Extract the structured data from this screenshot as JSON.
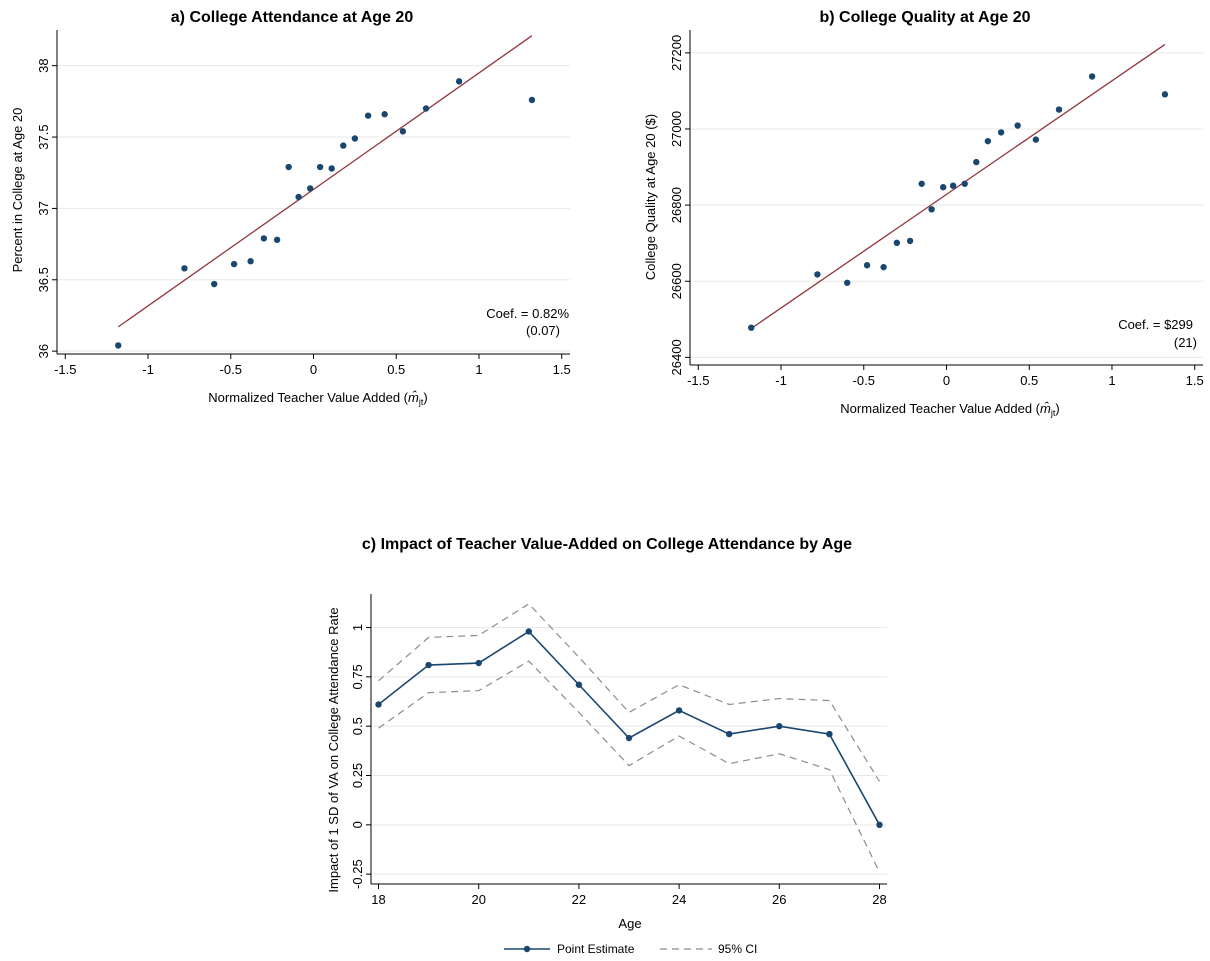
{
  "chart_data": [
    {
      "type": "scatter",
      "title": "a) College Attendance at Age 20",
      "xlabel": "Normalized Teacher Value Added (",
      "xlabel_symbol": "m̂",
      "xlabel_sub": "jt",
      "xlabel_end": ")",
      "ylabel": "Percent in College at Age 20",
      "xlim": [
        -1.55,
        1.55
      ],
      "ylim": [
        35.98,
        38.25
      ],
      "xticks": [
        -1.5,
        -1,
        -0.5,
        0,
        0.5,
        1,
        1.5
      ],
      "xtick_labels": [
        "-1.5",
        "-1",
        "-0.5",
        "0",
        "0.5",
        "1",
        "1.5"
      ],
      "yticks": [
        36,
        36.5,
        37,
        37.5,
        38
      ],
      "ytick_labels": [
        "36",
        "36.5",
        "37",
        "37.5",
        "38"
      ],
      "points": [
        {
          "x": -1.18,
          "y": 36.04
        },
        {
          "x": -0.78,
          "y": 36.58
        },
        {
          "x": -0.6,
          "y": 36.47
        },
        {
          "x": -0.48,
          "y": 36.61
        },
        {
          "x": -0.38,
          "y": 36.63
        },
        {
          "x": -0.3,
          "y": 36.79
        },
        {
          "x": -0.22,
          "y": 36.78
        },
        {
          "x": -0.15,
          "y": 37.29
        },
        {
          "x": -0.09,
          "y": 37.08
        },
        {
          "x": -0.02,
          "y": 37.14
        },
        {
          "x": 0.04,
          "y": 37.29
        },
        {
          "x": 0.11,
          "y": 37.28
        },
        {
          "x": 0.18,
          "y": 37.44
        },
        {
          "x": 0.25,
          "y": 37.49
        },
        {
          "x": 0.33,
          "y": 37.65
        },
        {
          "x": 0.43,
          "y": 37.66
        },
        {
          "x": 0.54,
          "y": 37.54
        },
        {
          "x": 0.68,
          "y": 37.7
        },
        {
          "x": 0.88,
          "y": 37.89
        },
        {
          "x": 1.32,
          "y": 37.76
        }
      ],
      "fit_line": {
        "x": [
          -1.18,
          1.32
        ],
        "y": [
          36.17,
          38.21
        ]
      },
      "coef_label": "Coef. = 0.82%",
      "se_label": "(0.07)",
      "marker_color": "#1a476f",
      "line_color": "#90353b"
    },
    {
      "type": "scatter",
      "title": "b) College Quality at Age 20",
      "xlabel": "Normalized Teacher Value Added (",
      "xlabel_symbol": "m̂",
      "xlabel_sub": "jt",
      "xlabel_end": ")",
      "ylabel": "College Quality at Age 20 ($)",
      "xlim": [
        -1.55,
        1.55
      ],
      "ylim": [
        26380,
        27260
      ],
      "xticks": [
        -1.5,
        -1,
        -0.5,
        0,
        0.5,
        1,
        1.5
      ],
      "xtick_labels": [
        "-1.5",
        "-1",
        "-0.5",
        "0",
        "0.5",
        "1",
        "1.5"
      ],
      "yticks": [
        26400,
        26600,
        26800,
        27000,
        27200
      ],
      "ytick_labels": [
        "26400",
        "26600",
        "26800",
        "27000",
        "27200"
      ],
      "points": [
        {
          "x": -1.18,
          "y": 26478
        },
        {
          "x": -0.78,
          "y": 26618
        },
        {
          "x": -0.6,
          "y": 26596
        },
        {
          "x": -0.48,
          "y": 26642
        },
        {
          "x": -0.38,
          "y": 26637
        },
        {
          "x": -0.3,
          "y": 26701
        },
        {
          "x": -0.22,
          "y": 26706
        },
        {
          "x": -0.15,
          "y": 26856
        },
        {
          "x": -0.09,
          "y": 26789
        },
        {
          "x": -0.02,
          "y": 26847
        },
        {
          "x": 0.04,
          "y": 26851
        },
        {
          "x": 0.11,
          "y": 26856
        },
        {
          "x": 0.18,
          "y": 26913
        },
        {
          "x": 0.25,
          "y": 26968
        },
        {
          "x": 0.33,
          "y": 26991
        },
        {
          "x": 0.43,
          "y": 27009
        },
        {
          "x": 0.54,
          "y": 26972
        },
        {
          "x": 0.68,
          "y": 27051
        },
        {
          "x": 0.88,
          "y": 27138
        },
        {
          "x": 1.32,
          "y": 27091
        }
      ],
      "fit_line": {
        "x": [
          -1.18,
          1.32
        ],
        "y": [
          26476,
          27222
        ]
      },
      "coef_label": "Coef. = $299",
      "se_label": "(21)",
      "marker_color": "#1a476f",
      "line_color": "#90353b"
    },
    {
      "type": "line",
      "title": "c) Impact of Teacher Value-Added on College Attendance by Age",
      "xlabel": "Age",
      "ylabel": "Impact of 1 SD of VA on College Attendance Rate",
      "xlim": [
        17.85,
        28.15
      ],
      "ylim": [
        -0.3,
        1.17
      ],
      "xticks": [
        18,
        20,
        22,
        24,
        26,
        28
      ],
      "xtick_labels": [
        "18",
        "20",
        "22",
        "24",
        "26",
        "28"
      ],
      "yticks": [
        -0.25,
        0,
        0.25,
        0.5,
        0.75,
        1
      ],
      "ytick_labels": [
        "-0.25",
        "0",
        "0.25",
        "0.5",
        "0.75",
        "1"
      ],
      "x": [
        18,
        19,
        20,
        21,
        22,
        23,
        24,
        25,
        26,
        27,
        28
      ],
      "series": [
        {
          "name": "Point Estimate",
          "style": "solid-marker",
          "color": "#1a476f",
          "values": [
            0.61,
            0.81,
            0.82,
            0.98,
            0.71,
            0.44,
            0.58,
            0.46,
            0.5,
            0.46,
            0.0
          ]
        },
        {
          "name": "95% CI",
          "style": "dashed",
          "color": "#8c8c8c",
          "values": [
            0.73,
            0.95,
            0.96,
            1.12,
            0.85,
            0.57,
            0.71,
            0.61,
            0.64,
            0.63,
            0.22
          ]
        },
        {
          "name": "95% CI",
          "style": "dashed",
          "color": "#8c8c8c",
          "values": [
            0.49,
            0.67,
            0.68,
            0.83,
            0.57,
            0.3,
            0.45,
            0.31,
            0.36,
            0.28,
            -0.24
          ]
        }
      ],
      "legend": {
        "position": "bottom-center",
        "items": [
          {
            "label": "Point Estimate",
            "style": "solid-marker",
            "color": "#1a476f"
          },
          {
            "label": "95% CI",
            "style": "dashed",
            "color": "#8c8c8c"
          }
        ]
      }
    }
  ]
}
